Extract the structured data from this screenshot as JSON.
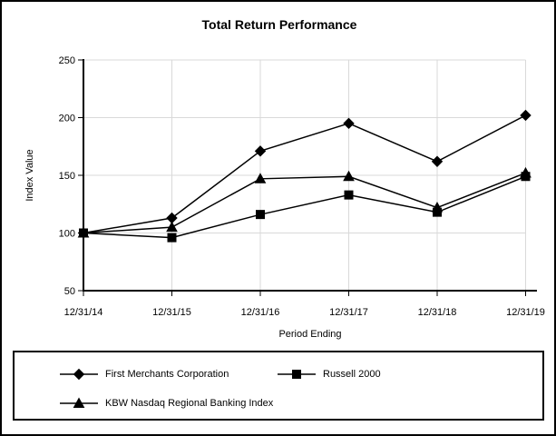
{
  "title": "Total Return Performance",
  "chart_data": {
    "type": "line",
    "title": "Total Return Performance",
    "xlabel": "Period Ending",
    "ylabel": "Index Value",
    "ylim": [
      50,
      250
    ],
    "y_ticks": [
      50,
      100,
      150,
      200,
      250
    ],
    "grid": true,
    "legend_position": "bottom-box",
    "categories": [
      "12/31/14",
      "12/31/15",
      "12/31/16",
      "12/31/17",
      "12/31/18",
      "12/31/19"
    ],
    "series": [
      {
        "name": "First Merchants Corporation",
        "marker": "diamond",
        "values": [
          100,
          113,
          171,
          195,
          162,
          202
        ]
      },
      {
        "name": "Russell 2000",
        "marker": "square",
        "values": [
          100,
          96,
          116,
          133,
          118,
          149
        ]
      },
      {
        "name": "KBW Nasdaq Regional Banking Index",
        "marker": "triangle",
        "values": [
          100,
          105,
          147,
          149,
          122,
          152
        ]
      }
    ],
    "colors": {
      "series": "#000000",
      "grid": "#d9d9d9",
      "axis": "#000000",
      "background": "#ffffff",
      "text": "#000000"
    }
  }
}
